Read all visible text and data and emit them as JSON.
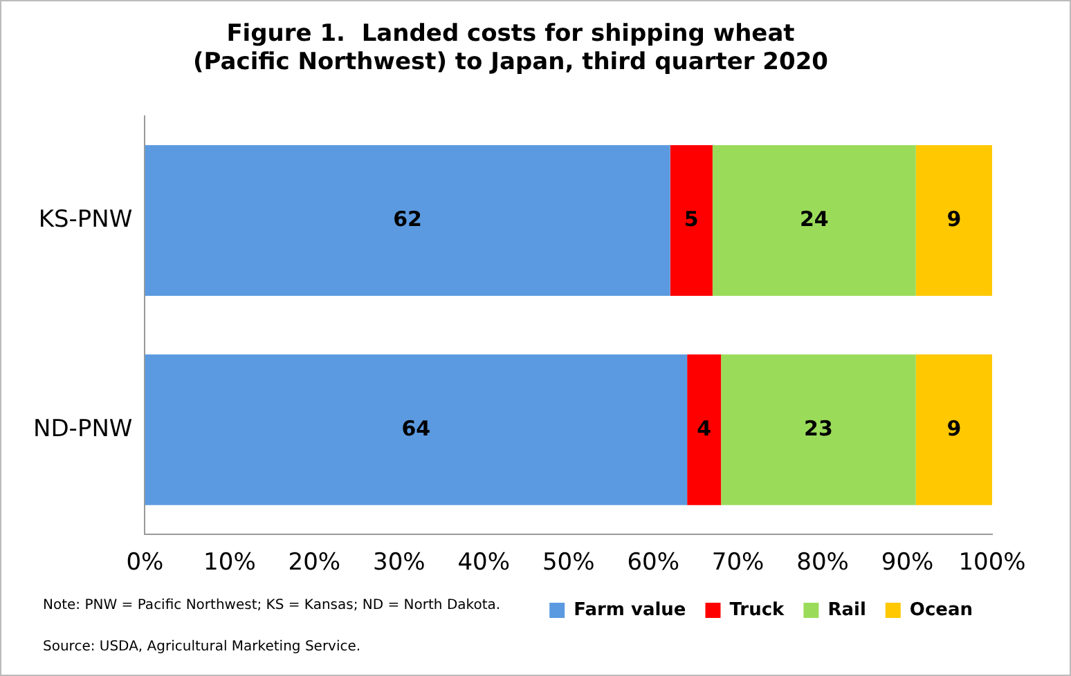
{
  "chart_data": {
    "type": "bar",
    "orientation": "horizontal",
    "stacked": true,
    "title": "Figure 1.  Landed costs for shipping wheat (Pacific Northwest) to Japan, third quarter 2020",
    "categories": [
      "KS-PNW",
      "ND-PNW"
    ],
    "series": [
      {
        "name": "Farm value",
        "color": "#5b9ae0",
        "values": [
          62,
          64
        ]
      },
      {
        "name": "Truck",
        "color": "#ff0000",
        "values": [
          5,
          4
        ]
      },
      {
        "name": "Rail",
        "color": "#9bdb5a",
        "values": [
          24,
          23
        ]
      },
      {
        "name": "Ocean",
        "color": "#ffc800",
        "values": [
          9,
          9
        ]
      }
    ],
    "xlim": [
      0,
      100
    ],
    "xticks": [
      {
        "value": 0,
        "label": "0%"
      },
      {
        "value": 10,
        "label": "10%"
      },
      {
        "value": 20,
        "label": "20%"
      },
      {
        "value": 30,
        "label": "30%"
      },
      {
        "value": 40,
        "label": "40%"
      },
      {
        "value": 50,
        "label": "50%"
      },
      {
        "value": 60,
        "label": "60%"
      },
      {
        "value": 70,
        "label": "70%"
      },
      {
        "value": 80,
        "label": "80%"
      },
      {
        "value": 90,
        "label": "90%"
      },
      {
        "value": 100,
        "label": "100%"
      }
    ],
    "data_labels": true,
    "grid": false,
    "legend": "bottom",
    "annotations": [
      "Note: PNW = Pacific Northwest; KS = Kansas; ND = North Dakota.",
      "Source: USDA, Agricultural Marketing Service."
    ]
  }
}
